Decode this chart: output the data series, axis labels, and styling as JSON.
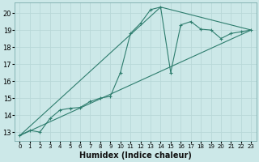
{
  "xlabel": "Humidex (Indice chaleur)",
  "background_color": "#cce8e8",
  "grid_color": "#b8d8d8",
  "line_color": "#2e7d6e",
  "xlim": [
    -0.5,
    23.5
  ],
  "ylim": [
    12.5,
    20.6
  ],
  "yticks": [
    13,
    14,
    15,
    16,
    17,
    18,
    19,
    20
  ],
  "xticks": [
    0,
    1,
    2,
    3,
    4,
    5,
    6,
    7,
    8,
    9,
    10,
    11,
    12,
    13,
    14,
    15,
    16,
    17,
    18,
    19,
    20,
    21,
    22,
    23
  ],
  "series_main": {
    "x": [
      0,
      1,
      2,
      3,
      4,
      5,
      6,
      7,
      8,
      9,
      10,
      11,
      12,
      13,
      14,
      15,
      16,
      17,
      18,
      19,
      20,
      21,
      22,
      23
    ],
    "y": [
      12.8,
      13.1,
      13.0,
      13.8,
      14.3,
      14.4,
      14.45,
      14.8,
      15.0,
      15.1,
      16.5,
      18.8,
      19.4,
      20.2,
      20.35,
      16.5,
      19.3,
      19.5,
      19.05,
      19.0,
      18.5,
      18.8,
      18.9,
      19.0
    ]
  },
  "series_straight": {
    "x": [
      0,
      23
    ],
    "y": [
      12.8,
      19.0
    ]
  },
  "series_peak": {
    "x": [
      0,
      14,
      23
    ],
    "y": [
      12.8,
      20.35,
      19.0
    ]
  },
  "xlabel_fontsize": 7,
  "ytick_fontsize": 6,
  "xtick_fontsize": 5
}
